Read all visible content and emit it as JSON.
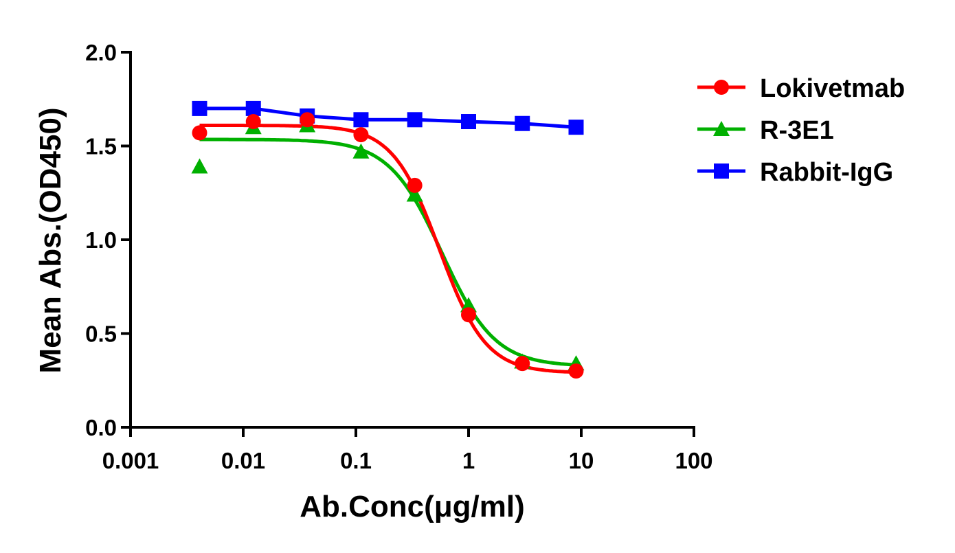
{
  "chart_data": {
    "type": "line",
    "title": "",
    "xlabel": "Ab.Conc(μg/ml)",
    "ylabel": "Mean Abs.(OD450)",
    "x_scale": "log",
    "xlim": [
      0.001,
      100
    ],
    "ylim": [
      0,
      2.0
    ],
    "x_ticks": [
      "0.001",
      "0.01",
      "0.1",
      "1",
      "10",
      "100"
    ],
    "y_ticks": [
      "0.0",
      "0.5",
      "1.0",
      "1.5",
      "2.0"
    ],
    "grid": false,
    "legend_position": "right",
    "x": [
      0.0041,
      0.0123,
      0.037,
      0.111,
      0.333,
      1,
      3,
      9
    ],
    "series": [
      {
        "name": "Lokivetmab",
        "color": "#ff0000",
        "marker": "circle",
        "line": "fitted-sigmoid",
        "values": [
          1.57,
          1.63,
          1.64,
          1.56,
          1.29,
          0.6,
          0.34,
          0.3
        ]
      },
      {
        "name": "R-3E1",
        "color": "#00b000",
        "marker": "triangle",
        "line": "fitted-sigmoid",
        "values": [
          1.39,
          1.6,
          1.61,
          1.47,
          1.24,
          0.65,
          0.35,
          0.34
        ]
      },
      {
        "name": "Rabbit-IgG",
        "color": "#0000ff",
        "marker": "square",
        "line": "connected",
        "values": [
          1.7,
          1.7,
          1.66,
          1.64,
          1.64,
          1.63,
          1.62,
          1.6
        ]
      }
    ]
  }
}
